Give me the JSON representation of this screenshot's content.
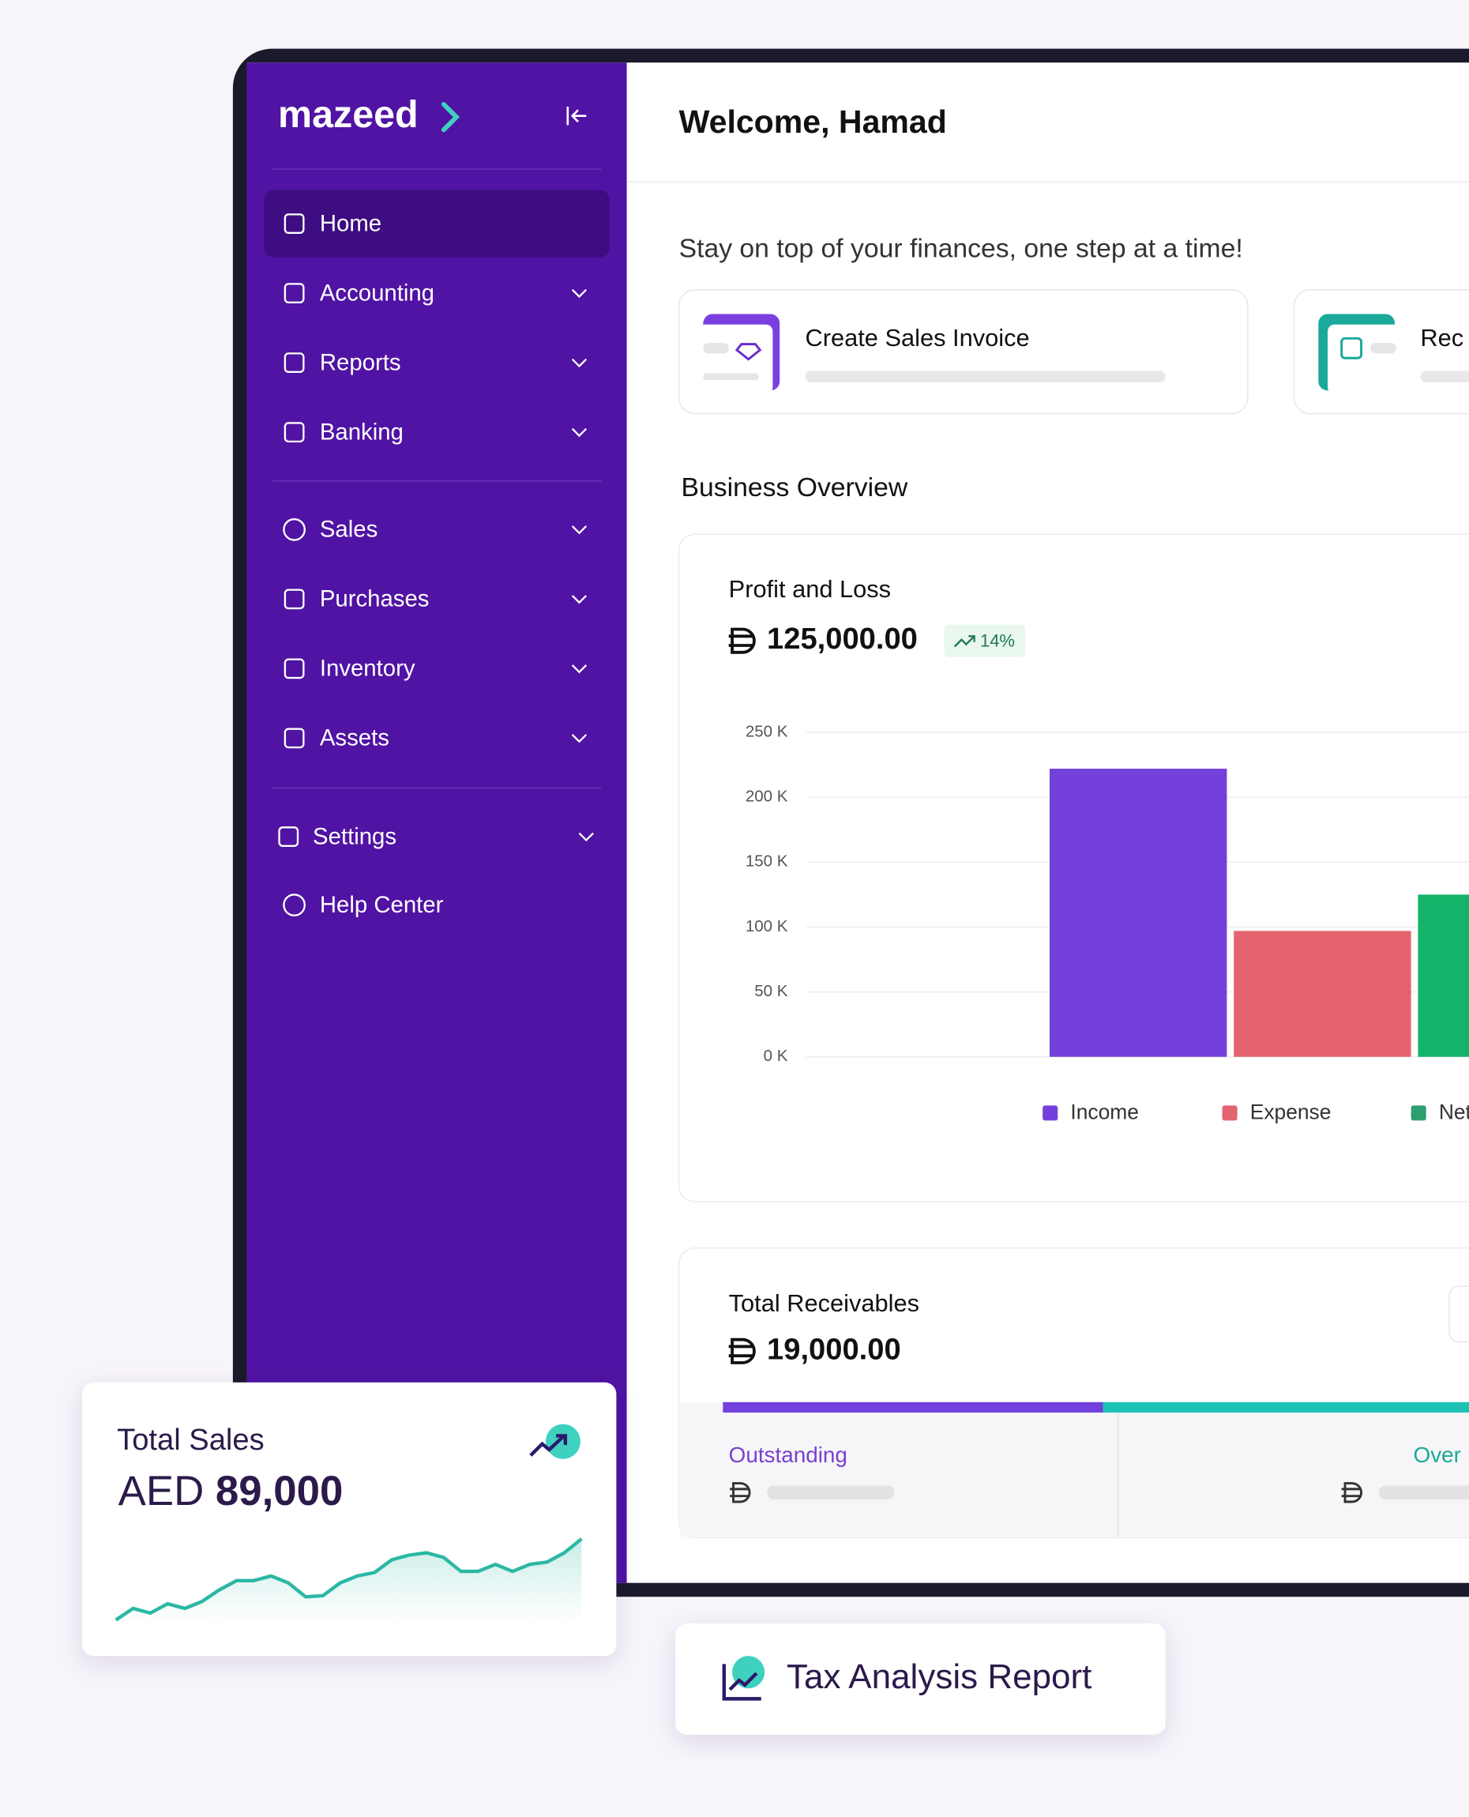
{
  "logo": "mazeed",
  "sidebar": {
    "items": [
      "Home",
      "Accounting",
      "Reports",
      "Banking",
      "Sales",
      "Purchases",
      "Inventory",
      "Assets",
      "Settings",
      "Help Center"
    ]
  },
  "header": {
    "title": "Welcome, Hamad"
  },
  "tagline": "Stay on top of your finances, one step at a time!",
  "quick_actions": [
    "Create Sales Invoice",
    "Rec"
  ],
  "overview": {
    "title": "Business Overview"
  },
  "profit_loss": {
    "title": "Profit and Loss",
    "amount": "125,000.00",
    "change": "14%",
    "chart": {
      "type": "bar",
      "categories": [
        "Income",
        "Expense",
        "Net"
      ],
      "values": [
        222,
        97,
        125
      ],
      "colors": [
        "#7440dc",
        "#e4636f",
        "#14b369"
      ],
      "legend_colors": [
        "#7440dc",
        "#e4636f",
        "#2f9e6f"
      ],
      "ylim": [
        0,
        250
      ],
      "yticks": [
        {
          "value": 0,
          "label": "0 K"
        },
        {
          "value": 50,
          "label": "50 K"
        },
        {
          "value": 100,
          "label": "100 K"
        },
        {
          "value": 150,
          "label": "150 K"
        },
        {
          "value": 200,
          "label": "200 K"
        },
        {
          "value": 250,
          "label": "250 K"
        }
      ],
      "grid": true
    }
  },
  "receivables": {
    "title": "Total Receivables",
    "amount": "19,000.00",
    "segments": [
      "Outstanding",
      "Over"
    ]
  },
  "total_sales": {
    "title": "Total Sales",
    "currency": "AED",
    "amount": "89,000",
    "trend": {
      "type": "line",
      "color": "#2bb8a4",
      "ylim": [
        0,
        80
      ],
      "values": [
        2,
        12,
        8,
        16,
        12,
        18,
        28,
        36,
        36,
        40,
        34,
        22,
        23,
        34,
        40,
        43,
        54,
        58,
        60,
        56,
        44,
        44,
        50,
        44,
        50,
        52,
        60,
        72
      ]
    }
  },
  "tax_report": {
    "label": "Tax Analysis Report"
  }
}
